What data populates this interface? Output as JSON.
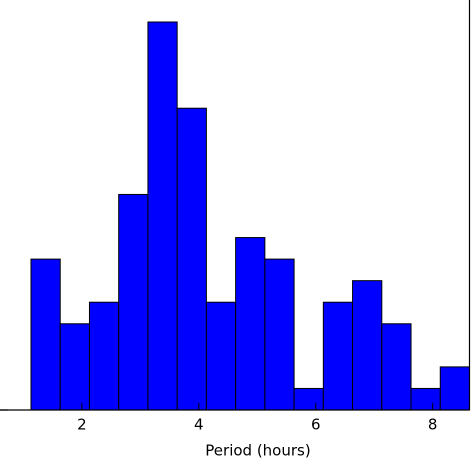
{
  "chart_data": {
    "type": "histogram",
    "x_label": "Period (hours)",
    "bins": [
      1.13,
      1.63,
      2.13,
      2.63,
      3.13,
      3.63,
      4.13,
      4.63,
      5.13,
      5.63,
      6.13,
      6.63,
      7.13,
      7.63,
      8.13,
      8.63
    ],
    "values": [
      7,
      4,
      5,
      10,
      18,
      14,
      5,
      8,
      7,
      1,
      5,
      6,
      4,
      1,
      2
    ],
    "color": "#0000ff",
    "xlim": [
      0.6,
      8.63
    ],
    "xticks": [
      2,
      4,
      6,
      8
    ],
    "ylim": [
      0,
      18
    ]
  }
}
